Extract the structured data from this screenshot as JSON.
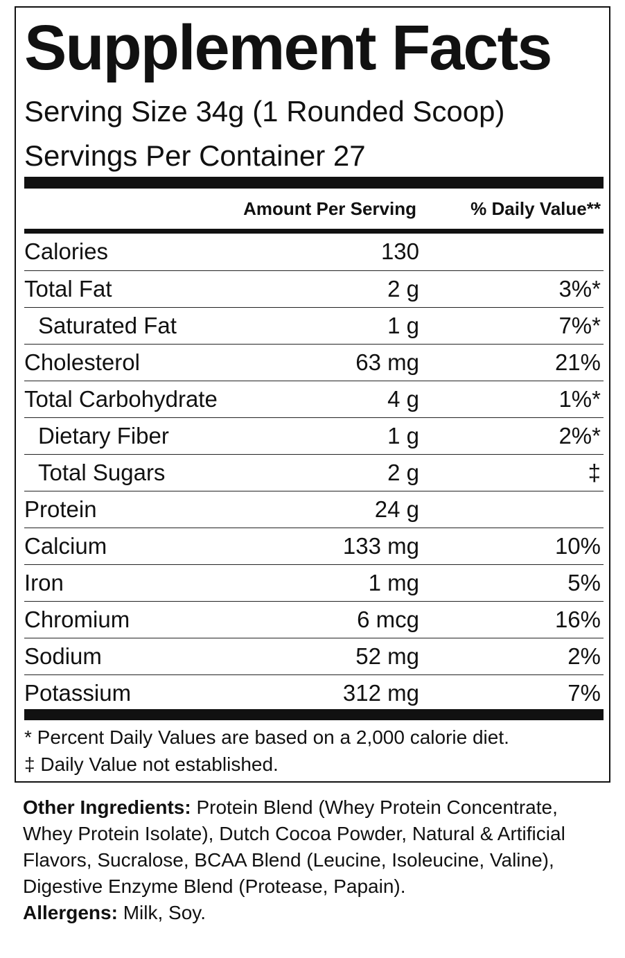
{
  "title": "Supplement Facts",
  "serving_size": "Serving Size 34g (1 Rounded Scoop)",
  "servings_per_container": "Servings Per Container  27",
  "headers": {
    "amount": "Amount Per Serving",
    "daily_value": "% Daily Value**"
  },
  "rows": [
    {
      "name": "Calories",
      "amount": "130",
      "dv": ""
    },
    {
      "name": "Total Fat",
      "amount": "2 g",
      "dv": "3%*"
    },
    {
      "name": "Saturated Fat",
      "amount": "1 g",
      "dv": "7%*"
    },
    {
      "name": "Cholesterol",
      "amount": "63 mg",
      "dv": "21%"
    },
    {
      "name": "Total Carbohydrate",
      "amount": "4 g",
      "dv": "1%*"
    },
    {
      "name": "Dietary Fiber",
      "amount": "1 g",
      "dv": "2%*"
    },
    {
      "name": "Total Sugars",
      "amount": "2 g",
      "dv": "‡"
    },
    {
      "name": "Protein",
      "amount": "24 g",
      "dv": ""
    },
    {
      "name": "Calcium",
      "amount": "133 mg",
      "dv": "10%"
    },
    {
      "name": "Iron",
      "amount": "1 mg",
      "dv": "5%"
    },
    {
      "name": "Chromium",
      "amount": "6 mcg",
      "dv": "16%"
    },
    {
      "name": "Sodium",
      "amount": "52 mg",
      "dv": "2%"
    },
    {
      "name": "Potassium",
      "amount": "312 mg",
      "dv": "7%"
    }
  ],
  "footnotes": {
    "percent_note": "* Percent Daily Values are based on a 2,000 calorie diet.",
    "dagger_note": "‡ Daily Value not established."
  },
  "other_ingredients": {
    "label": "Other Ingredients:",
    "text": " Protein Blend (Whey Protein Concentrate, Whey Protein Isolate), Dutch Cocoa Powder, Natural & Artificial Flavors, Sucralose, BCAA Blend (Leucine, Isoleucine, Valine), Digestive Enzyme Blend (Protease, Papain)."
  },
  "allergens": {
    "label": "Allergens:",
    "text": " Milk, Soy."
  }
}
